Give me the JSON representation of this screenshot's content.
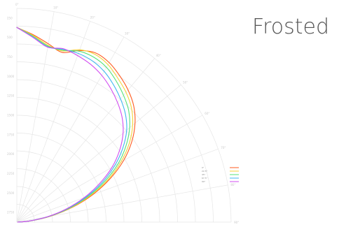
{
  "chart_data": {
    "type": "polar-line",
    "title": "Frosted",
    "radial_ticks": [
      "250",
      "500",
      "750",
      "1000",
      "1250",
      "1500",
      "1750",
      "2000",
      "2250",
      "2500",
      "2750"
    ],
    "angle_ticks": [
      "0°",
      "10°",
      "20°",
      "30°",
      "40°",
      "50°",
      "60°",
      "70°",
      "80°",
      "90°"
    ],
    "radial_max": 2750,
    "legend_position": "lower-right",
    "series": [
      {
        "name": "0°",
        "color": "#ff5a1f",
        "theta": [
          0,
          5,
          10,
          15,
          20,
          25,
          30,
          35,
          40,
          45,
          50,
          55,
          60,
          65,
          70,
          75,
          80,
          85,
          90
        ],
        "r": [
          2505,
          2420,
          2330,
          2260,
          2350,
          2400,
          2370,
          2300,
          2220,
          2120,
          1980,
          1800,
          1580,
          1320,
          1040,
          740,
          440,
          180,
          10
        ]
      },
      {
        "name": "22.5°",
        "color": "#f4d23a",
        "theta": [
          0,
          5,
          10,
          15,
          20,
          25,
          30,
          35,
          40,
          45,
          50,
          55,
          60,
          65,
          70,
          75,
          80,
          85,
          90
        ],
        "r": [
          2505,
          2410,
          2310,
          2280,
          2360,
          2380,
          2340,
          2260,
          2180,
          2080,
          1940,
          1760,
          1540,
          1290,
          1010,
          720,
          430,
          170,
          10
        ]
      },
      {
        "name": "45°",
        "color": "#55e27a",
        "theta": [
          0,
          5,
          10,
          15,
          20,
          25,
          30,
          35,
          40,
          45,
          50,
          55,
          60,
          65,
          70,
          75,
          80,
          85,
          90
        ],
        "r": [
          2505,
          2400,
          2300,
          2290,
          2340,
          2340,
          2300,
          2220,
          2130,
          2030,
          1890,
          1710,
          1500,
          1250,
          980,
          700,
          420,
          170,
          10
        ]
      },
      {
        "name": "67.5°",
        "color": "#3fb6f0",
        "theta": [
          0,
          5,
          10,
          15,
          20,
          25,
          30,
          35,
          40,
          45,
          50,
          55,
          60,
          65,
          70,
          75,
          80,
          85,
          90
        ],
        "r": [
          2505,
          2390,
          2290,
          2300,
          2310,
          2290,
          2240,
          2160,
          2070,
          1970,
          1840,
          1660,
          1450,
          1210,
          950,
          680,
          410,
          160,
          10
        ]
      },
      {
        "name": "90°",
        "color": "#d24df0",
        "theta": [
          0,
          5,
          10,
          15,
          20,
          25,
          30,
          35,
          40,
          45,
          50,
          55,
          60,
          65,
          70,
          75,
          80,
          85,
          90
        ],
        "r": [
          2505,
          2385,
          2285,
          2310,
          2280,
          2240,
          2180,
          2100,
          2010,
          1910,
          1780,
          1610,
          1410,
          1170,
          920,
          660,
          400,
          160,
          10
        ]
      }
    ]
  }
}
